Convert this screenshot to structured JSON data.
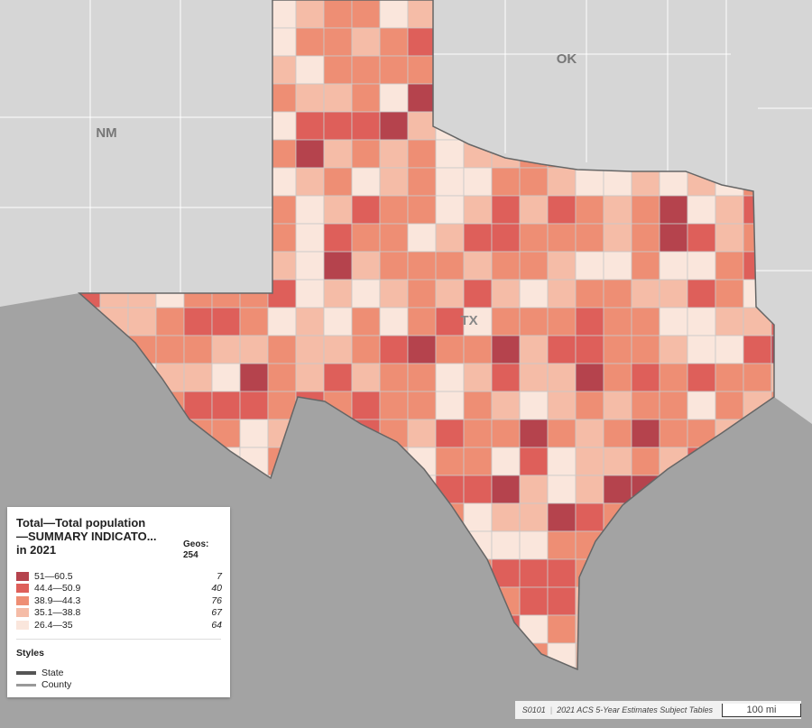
{
  "map_labels": [
    "NM",
    "OK",
    "TX"
  ],
  "legend": {
    "title_lines": [
      "Total—Total population",
      "—SUMMARY INDICATO...",
      "in 2021"
    ],
    "geos_label": "Geos:",
    "geos_count": "254",
    "classes": [
      {
        "range": "51—60.5",
        "count": "7",
        "color": "#b5434d"
      },
      {
        "range": "44.4—50.9",
        "count": "40",
        "color": "#de5f5a"
      },
      {
        "range": "38.9—44.3",
        "count": "76",
        "color": "#ee8e74"
      },
      {
        "range": "35.1—38.8",
        "count": "67",
        "color": "#f5bca7"
      },
      {
        "range": "26.4—35",
        "count": "64",
        "color": "#fae6dc"
      }
    ],
    "styles_title": "Styles",
    "styles": [
      "State",
      "County"
    ]
  },
  "footer": {
    "source_id": "S0101",
    "source": "2021 ACS 5-Year Estimates Subject Tables",
    "scale": "100 mi"
  }
}
